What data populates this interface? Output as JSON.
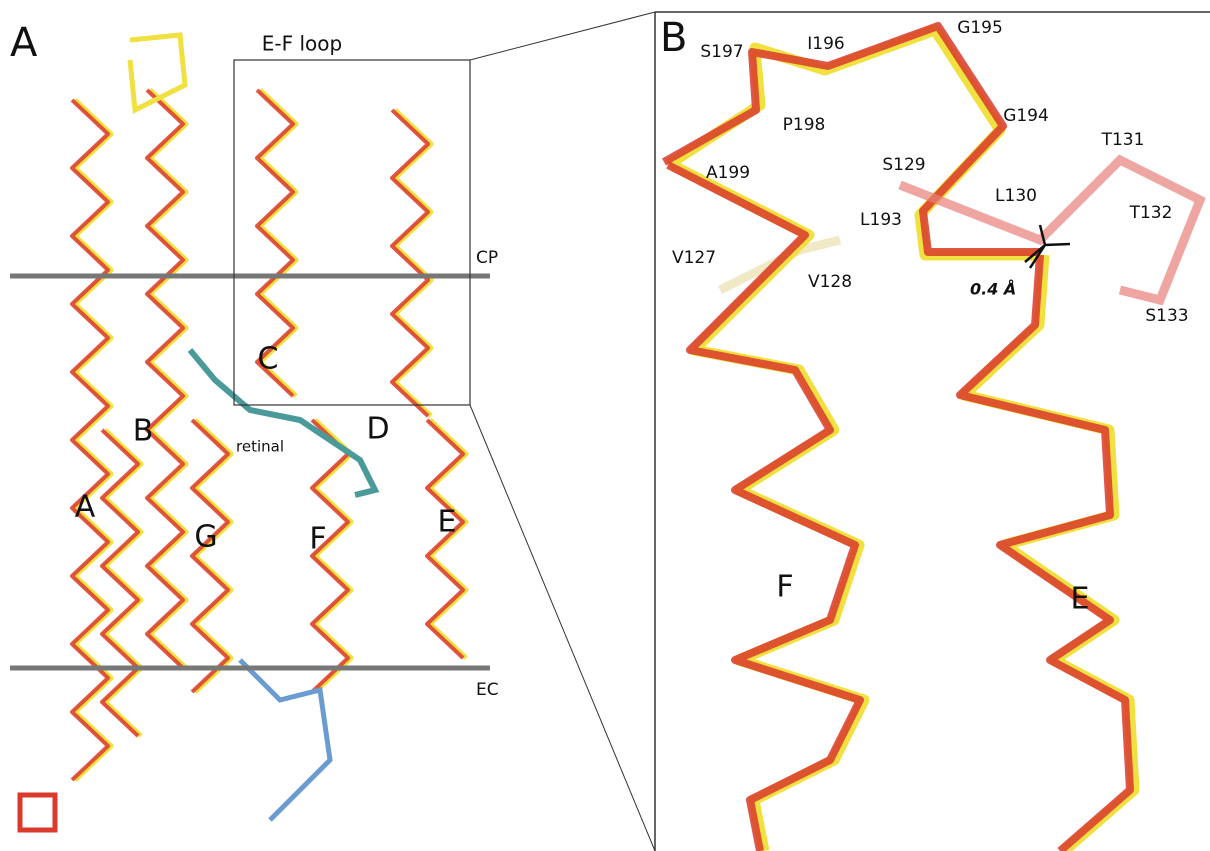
{
  "panel_a": {
    "label": "A",
    "inset_title": "E-F loop",
    "membrane_labels": [
      "CP",
      "EC"
    ],
    "helix_labels": [
      "A",
      "B",
      "C",
      "D",
      "E",
      "F",
      "G"
    ],
    "ligand_label": "retinal"
  },
  "panel_b": {
    "label": "B",
    "residues": [
      "S197",
      "I196",
      "G195",
      "G194",
      "P198",
      "A199",
      "S129",
      "T131",
      "L130",
      "T132",
      "L193",
      "V127",
      "V128",
      "S133"
    ],
    "distance_label": "0.4 Å",
    "helix_labels": [
      "F",
      "E"
    ]
  }
}
